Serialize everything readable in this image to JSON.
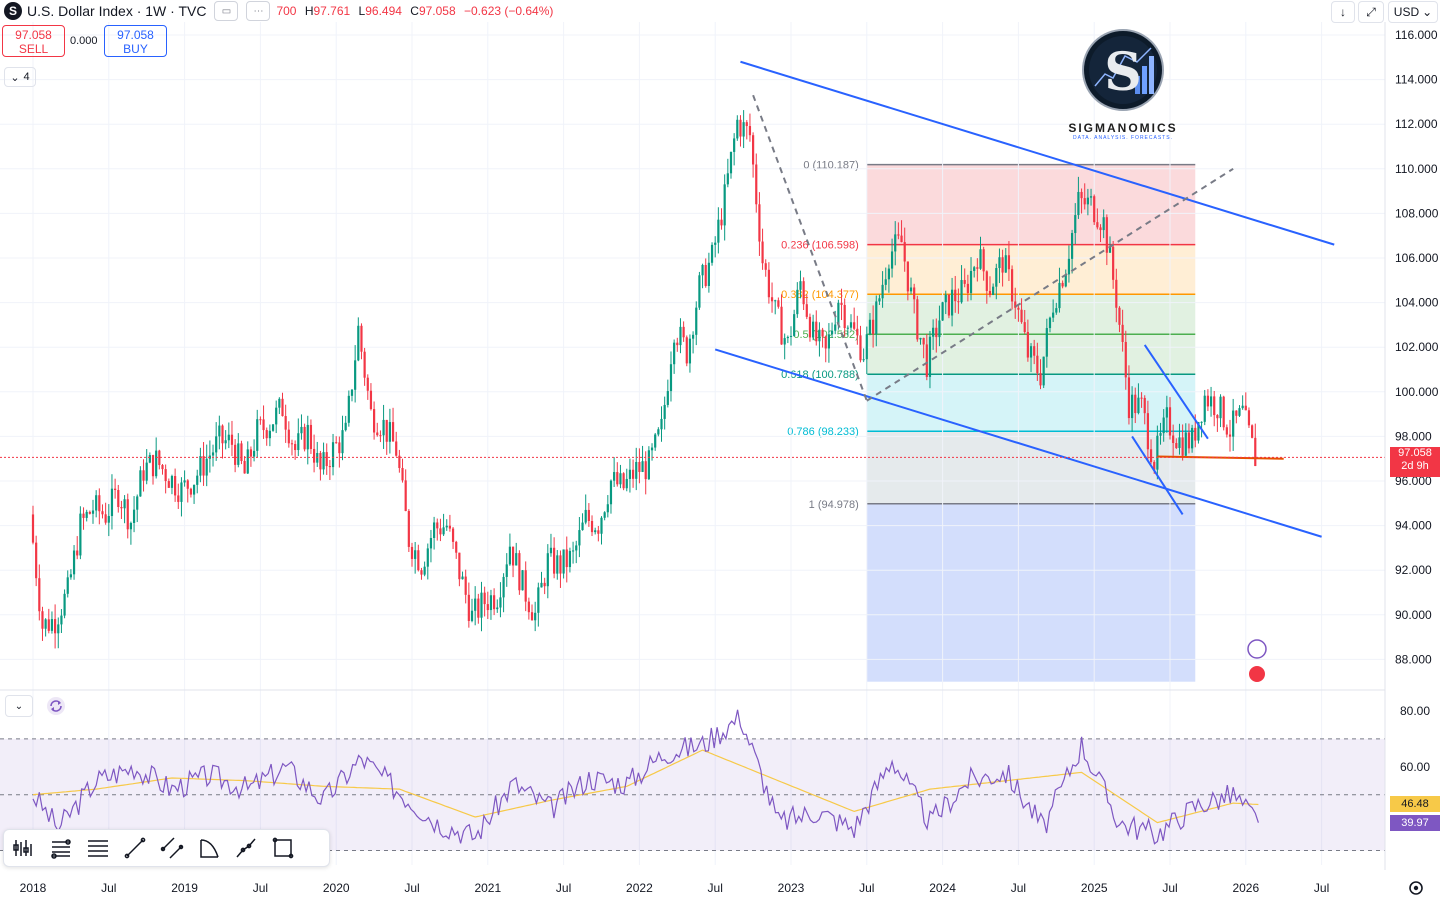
{
  "header": {
    "symbol_badge": "S",
    "title": "U.S. Dollar Index · 1W · TVC",
    "ohlc": {
      "o_label": "",
      "o": "700",
      "h_label": "H",
      "h": "97.761",
      "l_label": "L",
      "l": "96.494",
      "c_label": "C",
      "c": "97.058",
      "change": "−0.623 (−0.64%)"
    }
  },
  "trade": {
    "sell_price": "97.058",
    "sell_label": "SELL",
    "spread": "0.000",
    "buy_price": "97.058",
    "buy_label": "BUY"
  },
  "layers_count": "4",
  "currency": "USD",
  "logo": {
    "name": "SIGMANOMICS",
    "tagline": "DATA. ANALYSIS. FORECASTS."
  },
  "price_label": {
    "price": "97.058",
    "countdown": "2d 9h"
  },
  "rsi_values": {
    "ma": "46.48",
    "rsi": "39.97"
  },
  "colors": {
    "up": "#089981",
    "down": "#f23645",
    "channel": "#2962ff",
    "rsi": "#7e57c2",
    "rsi_ma": "#f7c948",
    "support": "#e65100"
  },
  "icons": [
    "cursor-icon",
    "fib-icon",
    "lines-icon",
    "trend-line-icon",
    "parallel-channel-icon",
    "arc-icon",
    "path-icon",
    "rectangle-icon",
    "sync-icon",
    "settings-icon"
  ],
  "chart_data": [
    {
      "type": "candlestick",
      "title": "U.S. Dollar Index · 1W · TVC",
      "ylim": [
        87,
        116.5
      ],
      "y_ticks": [
        "116.000",
        "114.000",
        "112.000",
        "110.000",
        "108.000",
        "106.000",
        "104.000",
        "102.000",
        "100.000",
        "98.000",
        "96.000",
        "94.000",
        "92.000",
        "90.000",
        "88.000"
      ],
      "x_ticks": [
        "2018",
        "Jul",
        "2019",
        "Jul",
        "2020",
        "Jul",
        "2021",
        "Jul",
        "2022",
        "Jul",
        "2023",
        "Jul",
        "2024",
        "Jul",
        "2025",
        "Jul",
        "2026",
        "Jul"
      ],
      "x_range": [
        "2018-01",
        "2026-09"
      ],
      "close_path": [
        [
          "2018-01",
          94.5
        ],
        [
          "2018-02",
          89.5
        ],
        [
          "2018-03",
          89.8
        ],
        [
          "2018-04",
          91.0
        ],
        [
          "2018-05",
          94.0
        ],
        [
          "2018-06",
          94.8
        ],
        [
          "2018-07",
          94.5
        ],
        [
          "2018-08",
          95.5
        ],
        [
          "2018-09",
          94.2
        ],
        [
          "2018-10",
          96.5
        ],
        [
          "2018-11",
          96.9
        ],
        [
          "2018-12",
          96.2
        ],
        [
          "2019-01",
          95.6
        ],
        [
          "2019-02",
          96.1
        ],
        [
          "2019-03",
          97.0
        ],
        [
          "2019-04",
          97.8
        ],
        [
          "2019-05",
          97.7
        ],
        [
          "2019-06",
          96.3
        ],
        [
          "2019-07",
          98.2
        ],
        [
          "2019-08",
          98.6
        ],
        [
          "2019-09",
          99.3
        ],
        [
          "2019-10",
          97.4
        ],
        [
          "2019-11",
          98.2
        ],
        [
          "2019-12",
          96.4
        ],
        [
          "2020-01",
          97.4
        ],
        [
          "2020-02",
          98.1
        ],
        [
          "2020-03",
          102.8
        ],
        [
          "2020-04",
          99.0
        ],
        [
          "2020-05",
          98.5
        ],
        [
          "2020-06",
          97.4
        ],
        [
          "2020-07",
          93.4
        ],
        [
          "2020-08",
          92.3
        ],
        [
          "2020-09",
          93.9
        ],
        [
          "2020-10",
          94.0
        ],
        [
          "2020-11",
          91.9
        ],
        [
          "2020-12",
          89.9
        ],
        [
          "2021-01",
          90.6
        ],
        [
          "2021-02",
          90.9
        ],
        [
          "2021-03",
          93.2
        ],
        [
          "2021-04",
          91.3
        ],
        [
          "2021-05",
          90.0
        ],
        [
          "2021-06",
          92.4
        ],
        [
          "2021-07",
          92.2
        ],
        [
          "2021-08",
          92.6
        ],
        [
          "2021-09",
          94.3
        ],
        [
          "2021-10",
          94.1
        ],
        [
          "2021-11",
          96.0
        ],
        [
          "2021-12",
          95.7
        ],
        [
          "2022-01",
          96.5
        ],
        [
          "2022-02",
          96.7
        ],
        [
          "2022-03",
          98.3
        ],
        [
          "2022-04",
          102.9
        ],
        [
          "2022-05",
          101.8
        ],
        [
          "2022-06",
          104.7
        ],
        [
          "2022-07",
          106.0
        ],
        [
          "2022-08",
          108.7
        ],
        [
          "2022-09",
          112.1
        ],
        [
          "2022-10",
          111.5
        ],
        [
          "2022-11",
          105.9
        ],
        [
          "2022-12",
          103.5
        ],
        [
          "2023-01",
          102.1
        ],
        [
          "2023-02",
          104.9
        ],
        [
          "2023-03",
          102.5
        ],
        [
          "2023-04",
          101.7
        ],
        [
          "2023-05",
          104.2
        ],
        [
          "2023-06",
          102.9
        ],
        [
          "2023-07",
          101.8
        ],
        [
          "2023-08",
          103.6
        ],
        [
          "2023-09",
          106.2
        ],
        [
          "2023-10",
          106.7
        ],
        [
          "2023-11",
          103.5
        ],
        [
          "2023-12",
          101.3
        ],
        [
          "2024-01",
          103.3
        ],
        [
          "2024-02",
          104.2
        ],
        [
          "2024-03",
          104.5
        ],
        [
          "2024-04",
          106.2
        ],
        [
          "2024-05",
          104.7
        ],
        [
          "2024-06",
          105.9
        ],
        [
          "2024-07",
          104.1
        ],
        [
          "2024-08",
          101.7
        ],
        [
          "2024-09",
          100.8
        ],
        [
          "2024-10",
          104.0
        ],
        [
          "2024-11",
          105.7
        ],
        [
          "2024-12",
          108.5
        ],
        [
          "2025-01",
          108.4
        ],
        [
          "2025-02",
          107.6
        ],
        [
          "2025-03",
          104.2
        ],
        [
          "2025-04",
          99.5
        ],
        [
          "2025-05",
          99.3
        ],
        [
          "2025-06",
          96.9
        ],
        [
          "2025-07",
          98.7
        ],
        [
          "2025-08",
          97.8
        ],
        [
          "2025-09",
          97.8
        ],
        [
          "2025-10",
          99.8
        ],
        [
          "2025-11",
          99.4
        ],
        [
          "2025-12",
          98.3
        ],
        [
          "2026-01",
          99.0
        ],
        [
          "2026-02",
          97.058
        ]
      ],
      "series": [
        {
          "name": "U.S. Dollar Index",
          "last": 97.058
        }
      ],
      "annotations": {
        "fibonacci": {
          "levels": [
            {
              "label": "0 (110.187)",
              "value": 110.187
            },
            {
              "label": "0.236 (106.598)",
              "value": 106.598
            },
            {
              "label": "0.382 (104.377)",
              "value": 104.377
            },
            {
              "label": "0.5 (102.582)",
              "value": 102.582
            },
            {
              "label": "0.618 (100.788)",
              "value": 100.788
            },
            {
              "label": "0.786 (98.233)",
              "value": 98.233
            },
            {
              "label": "1 (94.978)",
              "value": 94.978
            }
          ],
          "x_range": [
            "2023-07",
            "2025-09"
          ],
          "lower_bound": 87.0
        },
        "channel_upper": [
          [
            "2022-09",
            114.8
          ],
          [
            "2026-08",
            106.6
          ]
        ],
        "channel_lower": [
          [
            "2022-07",
            101.9
          ],
          [
            "2026-07",
            93.5
          ]
        ],
        "diag_dashed_1": [
          [
            "2022-10",
            113.3
          ],
          [
            "2023-07",
            99.6
          ]
        ],
        "diag_dashed_2": [
          [
            "2023-07",
            99.6
          ],
          [
            "2025-12",
            110.0
          ]
        ],
        "wedge_upper": [
          [
            "2025-05",
            102.1
          ],
          [
            "2025-10",
            97.9
          ]
        ],
        "wedge_lower": [
          [
            "2025-04",
            98.0
          ],
          [
            "2025-08",
            94.5
          ]
        ],
        "support_line": [
          [
            "2025-06",
            97.1
          ],
          [
            "2026-04",
            97.0
          ]
        ]
      }
    },
    {
      "type": "line",
      "title": "RSI",
      "ylim": [
        35,
        83
      ],
      "y_ticks": [
        "80.00",
        "60.00"
      ],
      "bands": [
        70,
        50,
        30
      ],
      "series": [
        {
          "name": "RSI",
          "last": 39.97,
          "path": [
            [
              "2018-01",
              50
            ],
            [
              "2018-03",
              38
            ],
            [
              "2018-06",
              55
            ],
            [
              "2018-09",
              60
            ],
            [
              "2018-12",
              52
            ],
            [
              "2019-03",
              57
            ],
            [
              "2019-06",
              52
            ],
            [
              "2019-09",
              60
            ],
            [
              "2019-12",
              48
            ],
            [
              "2020-03",
              63
            ],
            [
              "2020-06",
              51
            ],
            [
              "2020-09",
              40
            ],
            [
              "2020-12",
              35
            ],
            [
              "2021-03",
              54
            ],
            [
              "2021-06",
              45
            ],
            [
              "2021-09",
              56
            ],
            [
              "2021-12",
              54
            ],
            [
              "2022-03",
              65
            ],
            [
              "2022-06",
              68
            ],
            [
              "2022-09",
              78
            ],
            [
              "2022-12",
              40
            ],
            [
              "2023-03",
              44
            ],
            [
              "2023-06",
              38
            ],
            [
              "2023-09",
              63
            ],
            [
              "2023-12",
              40
            ],
            [
              "2024-03",
              55
            ],
            [
              "2024-06",
              58
            ],
            [
              "2024-09",
              38
            ],
            [
              "2024-12",
              68
            ],
            [
              "2025-03",
              40
            ],
            [
              "2025-06",
              36
            ],
            [
              "2025-09",
              46
            ],
            [
              "2025-12",
              50
            ],
            [
              "2026-02",
              39.97
            ]
          ]
        },
        {
          "name": "RSI MA",
          "last": 46.48,
          "path": [
            [
              "2018-01",
              50
            ],
            [
              "2018-06",
              52
            ],
            [
              "2018-12",
              56
            ],
            [
              "2019-06",
              55
            ],
            [
              "2019-12",
              53
            ],
            [
              "2020-06",
              52
            ],
            [
              "2020-12",
              42
            ],
            [
              "2021-06",
              48
            ],
            [
              "2021-12",
              53
            ],
            [
              "2022-06",
              66
            ],
            [
              "2022-12",
              55
            ],
            [
              "2023-06",
              44
            ],
            [
              "2023-12",
              52
            ],
            [
              "2024-06",
              55
            ],
            [
              "2024-12",
              58
            ],
            [
              "2025-06",
              40
            ],
            [
              "2025-12",
              47
            ],
            [
              "2026-02",
              46.48
            ]
          ]
        }
      ]
    }
  ]
}
